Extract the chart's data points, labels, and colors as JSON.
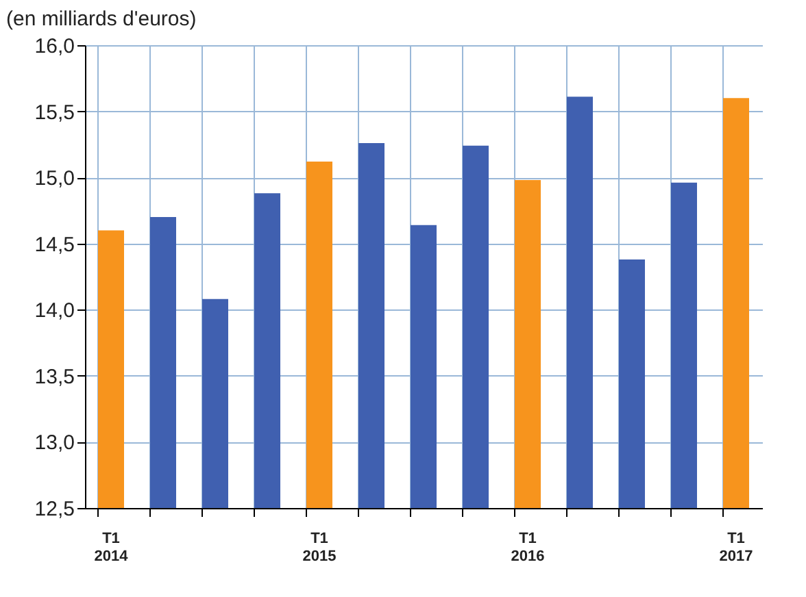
{
  "chart_data": {
    "type": "bar",
    "ylabel": "(en milliards d'euros)",
    "categories": [
      "T1 2014",
      null,
      null,
      null,
      "T1 2015",
      null,
      null,
      null,
      "T1 2016",
      null,
      null,
      null,
      "T1 2017"
    ],
    "values": [
      14.6,
      14.7,
      14.08,
      14.88,
      15.12,
      15.26,
      14.64,
      15.24,
      14.98,
      15.61,
      14.38,
      14.96,
      15.6
    ],
    "colors": [
      "#f7941d",
      "#4060b0",
      "#4060b0",
      "#4060b0",
      "#f7941d",
      "#4060b0",
      "#4060b0",
      "#4060b0",
      "#f7941d",
      "#4060b0",
      "#4060b0",
      "#4060b0",
      "#f7941d"
    ],
    "ylim": [
      12.5,
      16
    ],
    "yticks": [
      {
        "value": 12.5,
        "label": "12,5"
      },
      {
        "value": 13,
        "label": "13,0"
      },
      {
        "value": 13.5,
        "label": "13,5"
      },
      {
        "value": 14,
        "label": "14,0"
      },
      {
        "value": 14.5,
        "label": "14,5"
      },
      {
        "value": 15,
        "label": "15,0"
      },
      {
        "value": 15.5,
        "label": "15,5"
      },
      {
        "value": 16,
        "label": "16,0"
      }
    ],
    "grid": true
  }
}
